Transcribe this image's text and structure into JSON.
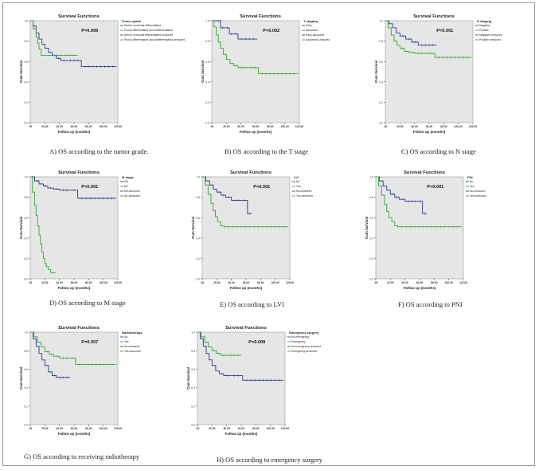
{
  "colors": {
    "series1": "#2b3a8c",
    "series2": "#3aa53a",
    "plot_bg": "#e6e6e6",
    "axis": "#333333"
  },
  "chart_data": [
    {
      "id": "A",
      "type": "line",
      "title": "Survival Functions",
      "xlabel": "Follow up (months)",
      "ylabel": "Cum Survival",
      "xlim": [
        0,
        120
      ],
      "ylim": [
        0,
        1
      ],
      "grid": false,
      "legend_position": "right",
      "legend_title": "Tumor grade",
      "legend": [
        "Well to moderate differentiated",
        "Poorly differentiated and undifferentiated",
        "Well to moderate differentiated-censored",
        "Poorly differentiated and undifferentiated-censored"
      ],
      "xticks": [
        ".00",
        "20.00",
        "40.00",
        "60.00",
        "80.00",
        "100.00",
        "120.00"
      ],
      "yticks": [
        "0.0",
        "0.2",
        "0.4",
        "0.6",
        "0.8",
        "1.0"
      ],
      "pvalue": "P=0.005",
      "caption": "A)  OS according to the tumor grade.",
      "series": [
        {
          "x": [
            0,
            4,
            8,
            12,
            16,
            20,
            25,
            30,
            36,
            42,
            50,
            70,
            118
          ],
          "y": [
            1.0,
            0.95,
            0.88,
            0.82,
            0.77,
            0.73,
            0.69,
            0.66,
            0.63,
            0.61,
            0.61,
            0.55,
            0.55
          ]
        },
        {
          "x": [
            0,
            4,
            8,
            10,
            12,
            15,
            20,
            65
          ],
          "y": [
            1.0,
            0.92,
            0.84,
            0.78,
            0.72,
            0.66,
            0.66,
            0.66
          ]
        }
      ]
    },
    {
      "id": "B",
      "type": "line",
      "title": "Survival Functions",
      "xlabel": "Follow up (months)",
      "ylabel": "Cum Survival",
      "xlim": [
        0,
        120
      ],
      "ylim": [
        0,
        1
      ],
      "grid": false,
      "legend_position": "right",
      "legend_title": "T staging",
      "legend": [
        "Early",
        "Advanced",
        "Early-censored",
        "Advanced-censored"
      ],
      "xticks": [
        ".00",
        "20.00",
        "40.00",
        "60.00",
        "80.00",
        "100.00",
        "120.00"
      ],
      "yticks": [
        "0.0",
        "0.2",
        "0.4",
        "0.6",
        "0.8",
        "1.0"
      ],
      "pvalue": "P=0.002",
      "caption": "B)  OS according to the T stage",
      "series": [
        {
          "x": [
            0,
            6,
            12,
            18,
            24,
            30,
            36,
            62
          ],
          "y": [
            1.0,
            1.0,
            0.93,
            0.93,
            0.87,
            0.87,
            0.82,
            0.82
          ]
        },
        {
          "x": [
            0,
            3,
            6,
            9,
            12,
            16,
            20,
            25,
            30,
            36,
            50,
            64,
            118
          ],
          "y": [
            1.0,
            0.94,
            0.86,
            0.79,
            0.73,
            0.67,
            0.62,
            0.58,
            0.56,
            0.54,
            0.54,
            0.48,
            0.48
          ]
        }
      ]
    },
    {
      "id": "C",
      "type": "line",
      "title": "Survival Functions",
      "xlabel": "Follow up (months)",
      "ylabel": "Cum Survival",
      "xlim": [
        0,
        120
      ],
      "ylim": [
        0,
        1
      ],
      "grid": false,
      "legend_position": "right",
      "legend_title": "N staging",
      "legend": [
        "Negative",
        "Positive",
        "Negative-censored",
        "Positive-censored"
      ],
      "xticks": [
        ".00",
        "20.00",
        "40.00",
        "60.00",
        "80.00",
        "100.00",
        "120.00"
      ],
      "yticks": [
        "0.0",
        "0.2",
        "0.4",
        "0.6",
        "0.8",
        "1.0"
      ],
      "pvalue": "P<0.001",
      "caption": "C)  OS according to N stage",
      "series": [
        {
          "x": [
            0,
            5,
            10,
            15,
            20,
            28,
            36,
            45,
            70
          ],
          "y": [
            1.0,
            0.97,
            0.93,
            0.88,
            0.85,
            0.82,
            0.79,
            0.76,
            0.76
          ]
        },
        {
          "x": [
            0,
            4,
            8,
            12,
            16,
            20,
            26,
            32,
            40,
            55,
            68,
            118
          ],
          "y": [
            1.0,
            0.93,
            0.86,
            0.8,
            0.76,
            0.73,
            0.7,
            0.69,
            0.68,
            0.68,
            0.64,
            0.64
          ]
        }
      ]
    },
    {
      "id": "D",
      "type": "line",
      "title": "Survival Functions",
      "xlabel": "Follow up (months)",
      "ylabel": "Cum Survival",
      "xlim": [
        0,
        120
      ],
      "ylim": [
        0,
        1
      ],
      "grid": false,
      "legend_position": "right",
      "legend_title": "M stage",
      "legend": [
        "M0",
        "M1",
        "M0-censored",
        "M1-censored"
      ],
      "xticks": [
        ".00",
        "20.00",
        "40.00",
        "60.00",
        "80.00",
        "100.00",
        "120.00"
      ],
      "yticks": [
        "0.0",
        "0.2",
        "0.4",
        "0.6",
        "0.8",
        "1.0"
      ],
      "pvalue": "P<0.001",
      "caption": "D)  OS according to M stage",
      "series": [
        {
          "x": [
            0,
            6,
            12,
            18,
            24,
            32,
            40,
            55,
            65,
            118
          ],
          "y": [
            1.0,
            0.96,
            0.93,
            0.91,
            0.89,
            0.88,
            0.87,
            0.87,
            0.79,
            0.79
          ]
        },
        {
          "x": [
            0,
            3,
            6,
            8,
            10,
            12,
            14,
            16,
            18,
            20,
            22,
            25,
            28,
            35
          ],
          "y": [
            1.0,
            0.85,
            0.72,
            0.62,
            0.52,
            0.43,
            0.34,
            0.26,
            0.2,
            0.15,
            0.12,
            0.09,
            0.06,
            0.06
          ]
        }
      ]
    },
    {
      "id": "E",
      "type": "line",
      "title": "Survival Functions",
      "xlabel": "Follow up (months)",
      "ylabel": "Cum Survival",
      "xlim": [
        0,
        120
      ],
      "ylim": [
        0,
        1
      ],
      "grid": false,
      "legend_position": "right",
      "legend_title": "LVI",
      "legend": [
        "No",
        "Yes",
        "No-censored",
        "Yes-censored"
      ],
      "xticks": [
        ".00",
        "20.00",
        "40.00",
        "60.00",
        "80.00",
        "100.00",
        "120.00"
      ],
      "yticks": [
        "0.0",
        "0.2",
        "0.4",
        "0.6",
        "0.8",
        "1.0"
      ],
      "pvalue": "P<0.001",
      "caption": "E)  OS according to LVI",
      "series": [
        {
          "x": [
            0,
            5,
            10,
            15,
            20,
            26,
            32,
            40,
            55,
            62,
            68
          ],
          "y": [
            1.0,
            0.96,
            0.92,
            0.88,
            0.85,
            0.82,
            0.8,
            0.77,
            0.77,
            0.64,
            0.64
          ]
        },
        {
          "x": [
            0,
            4,
            8,
            12,
            15,
            18,
            21,
            25,
            30,
            118
          ],
          "y": [
            1.0,
            0.92,
            0.83,
            0.74,
            0.67,
            0.61,
            0.56,
            0.52,
            0.51,
            0.51
          ]
        }
      ]
    },
    {
      "id": "F",
      "type": "line",
      "title": "Survival Functions",
      "xlabel": "Follow up (months)",
      "ylabel": "Cum Survival",
      "xlim": [
        0,
        120
      ],
      "ylim": [
        0,
        1
      ],
      "grid": false,
      "legend_position": "right",
      "legend_title": "PNI",
      "legend": [
        "No",
        "Yes",
        "No-censored",
        "Yes-censored"
      ],
      "xticks": [
        ".00",
        "20.00",
        "40.00",
        "60.00",
        "80.00",
        "100.00",
        "120.00"
      ],
      "yticks": [
        "0.0",
        "0.2",
        "0.4",
        "0.6",
        "0.8",
        "1.0"
      ],
      "pvalue": "P<0.001",
      "caption": "F)  OS according to PNI",
      "series": [
        {
          "x": [
            0,
            5,
            10,
            15,
            20,
            26,
            32,
            40,
            58,
            64,
            70
          ],
          "y": [
            1.0,
            0.96,
            0.91,
            0.87,
            0.83,
            0.8,
            0.78,
            0.76,
            0.76,
            0.64,
            0.64
          ]
        },
        {
          "x": [
            0,
            4,
            8,
            12,
            15,
            18,
            22,
            26,
            30,
            118
          ],
          "y": [
            1.0,
            0.91,
            0.82,
            0.73,
            0.66,
            0.6,
            0.56,
            0.52,
            0.51,
            0.51
          ]
        }
      ]
    },
    {
      "id": "G",
      "type": "line",
      "title": "Survival Functions",
      "xlabel": "Follow up (months)",
      "ylabel": "Cum Survival",
      "xlim": [
        0,
        120
      ],
      "ylim": [
        0,
        1
      ],
      "grid": false,
      "legend_position": "right",
      "legend_title": "Radiotherapy",
      "legend": [
        "No",
        "Yes",
        "No-censored",
        "Yes-censored"
      ],
      "xticks": [
        ".00",
        "20.00",
        "40.00",
        "60.00",
        "80.00",
        "100.00",
        "120.00"
      ],
      "yticks": [
        "0.0",
        "0.2",
        "0.4",
        "0.6",
        "0.8",
        "1.0"
      ],
      "pvalue": "P=0.007",
      "caption": "G)  OS according to receiving radiotherapy",
      "series": [
        {
          "x": [
            0,
            4,
            8,
            12,
            16,
            20,
            25,
            30,
            36,
            55
          ],
          "y": [
            1.0,
            0.93,
            0.85,
            0.77,
            0.7,
            0.64,
            0.57,
            0.53,
            0.51,
            0.51
          ]
        },
        {
          "x": [
            0,
            5,
            10,
            15,
            20,
            26,
            32,
            40,
            55,
            62,
            118
          ],
          "y": [
            1.0,
            0.95,
            0.89,
            0.84,
            0.79,
            0.76,
            0.74,
            0.72,
            0.72,
            0.65,
            0.65
          ]
        }
      ]
    },
    {
      "id": "H",
      "type": "line",
      "title": "Survival Functions",
      "xlabel": "Follow up (months)",
      "ylabel": "Cum Survival",
      "xlim": [
        0,
        120
      ],
      "ylim": [
        0,
        1
      ],
      "grid": false,
      "legend_position": "right",
      "legend_title": "Emergency surgery",
      "legend": [
        "No emergency",
        "Emergency",
        "No emergency-censored",
        "Emergency-censored"
      ],
      "xticks": [
        ".00",
        "20.00",
        "40.00",
        "60.00",
        "80.00",
        "100.00",
        "120.00"
      ],
      "yticks": [
        "0.0",
        "0.2",
        "0.4",
        "0.6",
        "0.8",
        "1.0"
      ],
      "pvalue": "P=0.009",
      "caption": "H)  OS according to emergency surgery",
      "series": [
        {
          "x": [
            0,
            4,
            8,
            12,
            16,
            20,
            25,
            30,
            36,
            45,
            62,
            118
          ],
          "y": [
            1.0,
            0.93,
            0.85,
            0.77,
            0.7,
            0.64,
            0.58,
            0.55,
            0.53,
            0.53,
            0.48,
            0.48
          ]
        },
        {
          "x": [
            0,
            5,
            10,
            15,
            20,
            26,
            32,
            40,
            60
          ],
          "y": [
            1.0,
            0.95,
            0.89,
            0.84,
            0.8,
            0.77,
            0.75,
            0.75,
            0.75
          ]
        }
      ]
    }
  ]
}
